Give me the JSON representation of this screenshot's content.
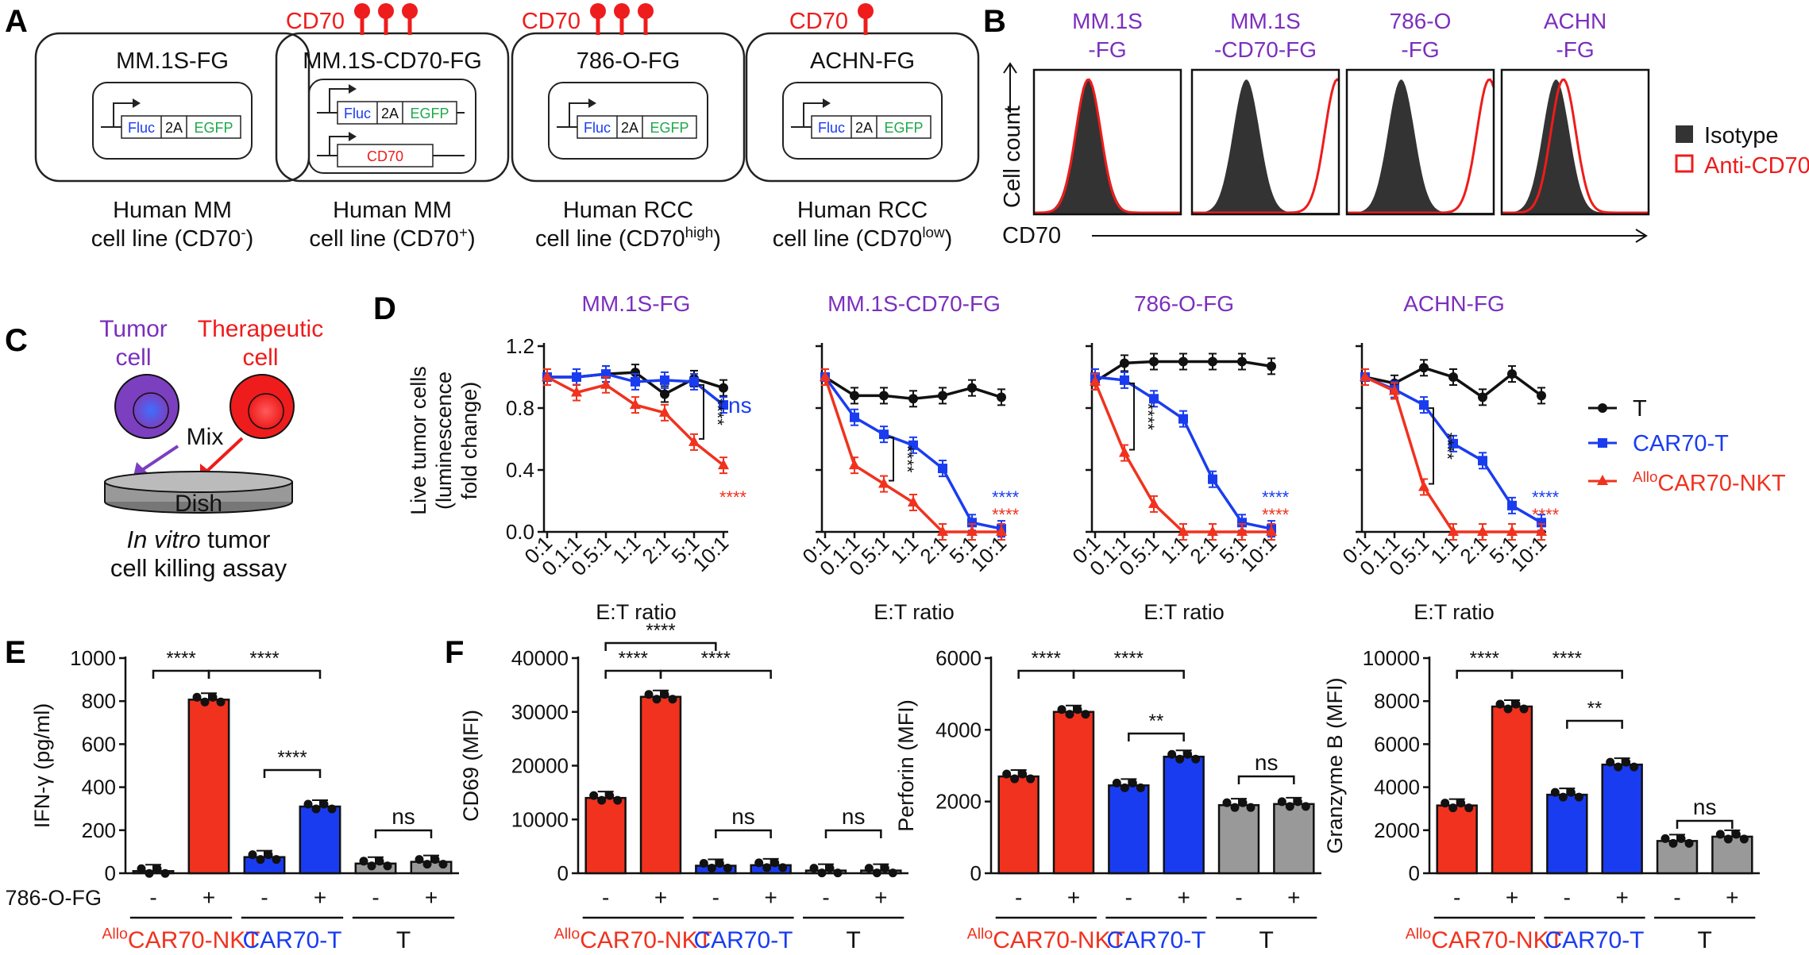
{
  "colors": {
    "nkt": "#f0321e",
    "cart": "#1a3cf0",
    "t": "#999999",
    "purple": "#7b2fbe",
    "red": "#ee1c1c",
    "blue": "#1a3cf0",
    "green": "#1fa84b",
    "black": "#111111"
  },
  "panelA": {
    "label": "A",
    "cd70_label": "CD70",
    "constructs": [
      {
        "name": "MM.1S-FG",
        "caption1": "Human MM",
        "caption2": "cell line (CD70",
        "sup": "-",
        "caption2_end": ")",
        "receptors": 0,
        "extra": false
      },
      {
        "name": "MM.1S-CD70-FG",
        "caption1": "Human MM",
        "caption2": "cell line (CD70",
        "sup": "+",
        "caption2_end": ")",
        "receptors": 3,
        "extra": true
      },
      {
        "name": "786-O-FG",
        "caption1": "Human RCC",
        "caption2": "cell line (CD70",
        "sup": "high",
        "caption2_end": ")",
        "receptors": 3,
        "extra": false
      },
      {
        "name": "ACHN-FG",
        "caption1": "Human RCC",
        "caption2": "cell line (CD70",
        "sup": "low",
        "caption2_end": ")",
        "receptors": 1,
        "extra": false
      }
    ],
    "gene_fluc": "Fluc",
    "gene_2a": "2A",
    "gene_egfp": "EGFP",
    "gene_cd70": "CD70"
  },
  "panelB": {
    "label": "B",
    "titles": [
      [
        "MM.1S",
        "-FG"
      ],
      [
        "MM.1S",
        "-CD70-FG"
      ],
      [
        "786-O",
        "-FG"
      ],
      [
        "ACHN",
        "-FG"
      ]
    ],
    "shift": [
      0,
      0.62,
      0.6,
      0.05
    ],
    "ylabel": "Cell count",
    "xlabel": "CD70",
    "legend": [
      {
        "label": "Isotype"
      },
      {
        "label": "Anti-CD70"
      }
    ]
  },
  "panelC": {
    "label": "C",
    "tumor": [
      "Tumor",
      "cell"
    ],
    "therapeutic": [
      "Therapeutic",
      "cell"
    ],
    "mix": "Mix",
    "dish": "Dish",
    "caption1_italic": "In vitro",
    "caption1_rest": " tumor",
    "caption2": "cell killing assay"
  },
  "panelD": {
    "label": "D",
    "ylabel": [
      "Live tumor cells",
      "(luminescence",
      "fold change)"
    ],
    "xlabel": "E:T ratio",
    "ratios": [
      "0:1",
      "0.1:1",
      "0.5:1",
      "1:1",
      "2:1",
      "5:1",
      "10:1"
    ],
    "yticks": [
      "0.0",
      "0.4",
      "0.8",
      "1.2"
    ],
    "legend": [
      {
        "label": "T"
      },
      {
        "label": "CAR70-T"
      },
      {
        "sup": "Allo",
        "label": "CAR70-NKT"
      }
    ],
    "panels": [
      {
        "title": "MM.1S-FG",
        "T": [
          1.0,
          1.0,
          1.02,
          1.03,
          0.89,
          0.99,
          0.93
        ],
        "CAR": [
          1.0,
          1.0,
          1.02,
          0.97,
          0.98,
          0.97,
          0.82
        ],
        "NKT": [
          1.0,
          0.9,
          0.95,
          0.82,
          0.77,
          0.58,
          0.43
        ],
        "sig_bracket": "****",
        "car_label": "ns",
        "nkt_label": "****"
      },
      {
        "title": "MM.1S-CD70-FG",
        "T": [
          1.0,
          0.88,
          0.88,
          0.86,
          0.88,
          0.93,
          0.87
        ],
        "CAR": [
          1.0,
          0.74,
          0.63,
          0.56,
          0.41,
          0.06,
          0.02
        ],
        "NKT": [
          1.0,
          0.43,
          0.31,
          0.19,
          0.0,
          0.0,
          0.0
        ],
        "sig_bracket": "****",
        "car_label": "****",
        "nkt_label": "****"
      },
      {
        "title": "786-O-FG",
        "T": [
          0.97,
          1.09,
          1.1,
          1.1,
          1.1,
          1.1,
          1.07
        ],
        "CAR": [
          1.0,
          0.98,
          0.86,
          0.73,
          0.34,
          0.06,
          0.02
        ],
        "NKT": [
          0.97,
          0.51,
          0.18,
          0.0,
          0.0,
          0.0,
          0.0
        ],
        "sig_bracket": "****",
        "car_label": "****",
        "nkt_label": "****"
      },
      {
        "title": "ACHN-FG",
        "T": [
          1.0,
          0.96,
          1.06,
          1.0,
          0.87,
          1.02,
          0.88
        ],
        "CAR": [
          1.0,
          0.92,
          0.82,
          0.57,
          0.46,
          0.17,
          0.06
        ],
        "NKT": [
          1.0,
          0.91,
          0.29,
          0.0,
          0.0,
          0.0,
          0.0
        ],
        "sig_bracket": "****",
        "car_label": "****",
        "nkt_label": "****"
      }
    ]
  },
  "panelE": {
    "label": "E",
    "ylabel": "IFN-γ (pg/ml)",
    "yticks": [
      "0",
      "200",
      "400",
      "600",
      "800",
      "1000"
    ],
    "row_label": "786-O-FG",
    "values": [
      10,
      807,
      75,
      310,
      45,
      53
    ],
    "sig": [
      "****",
      "****",
      "****",
      "ns"
    ]
  },
  "panelF": {
    "label": "F",
    "charts": [
      {
        "ylabel": "CD69 (MFI)",
        "yticks": [
          "0",
          "10000",
          "20000",
          "30000",
          "40000"
        ],
        "values": [
          14000,
          32800,
          1400,
          1500,
          500,
          500
        ],
        "sig": [
          "****",
          "****",
          "****",
          "ns",
          "ns"
        ]
      },
      {
        "ylabel": "Perforin (MFI)",
        "yticks": [
          "0",
          "2000",
          "4000",
          "6000"
        ],
        "values": [
          2700,
          4500,
          2450,
          3250,
          1900,
          1930
        ],
        "sig": [
          "****",
          "****",
          "**",
          "ns"
        ]
      },
      {
        "ylabel": "Granzyme B (MFI)",
        "yticks": [
          "0",
          "2000",
          "4000",
          "6000",
          "8000",
          "10000"
        ],
        "values": [
          3150,
          7750,
          3650,
          5050,
          1500,
          1700
        ],
        "sig": [
          "****",
          "****",
          "**",
          "ns"
        ]
      }
    ]
  },
  "groups": {
    "nkt_sup": "Allo",
    "nkt": "CAR70-NKT",
    "cart": "CAR70-T",
    "t": "T",
    "minus": "-",
    "plus": "+"
  },
  "chart_data": [
    {
      "type": "line",
      "title": "Panel D: MM.1S-FG",
      "xlabel": "E:T ratio",
      "ylabel": "Live tumor cells (luminescence fold change)",
      "categories": [
        "0:1",
        "0.1:1",
        "0.5:1",
        "1:1",
        "2:1",
        "5:1",
        "10:1"
      ],
      "ylim": [
        0,
        1.2
      ],
      "series": [
        {
          "name": "T",
          "values": [
            1.0,
            1.0,
            1.02,
            1.03,
            0.89,
            0.99,
            0.93
          ]
        },
        {
          "name": "CAR70-T",
          "values": [
            1.0,
            1.0,
            1.02,
            0.97,
            0.98,
            0.97,
            0.82
          ]
        },
        {
          "name": "AlloCAR70-NKT",
          "values": [
            1.0,
            0.9,
            0.95,
            0.82,
            0.77,
            0.58,
            0.43
          ]
        }
      ]
    },
    {
      "type": "line",
      "title": "Panel D: MM.1S-CD70-FG",
      "xlabel": "E:T ratio",
      "ylabel": "Live tumor cells (luminescence fold change)",
      "categories": [
        "0:1",
        "0.1:1",
        "0.5:1",
        "1:1",
        "2:1",
        "5:1",
        "10:1"
      ],
      "ylim": [
        0,
        1.2
      ],
      "series": [
        {
          "name": "T",
          "values": [
            1.0,
            0.88,
            0.88,
            0.86,
            0.88,
            0.93,
            0.87
          ]
        },
        {
          "name": "CAR70-T",
          "values": [
            1.0,
            0.74,
            0.63,
            0.56,
            0.41,
            0.06,
            0.02
          ]
        },
        {
          "name": "AlloCAR70-NKT",
          "values": [
            1.0,
            0.43,
            0.31,
            0.19,
            0.0,
            0.0,
            0.0
          ]
        }
      ]
    },
    {
      "type": "line",
      "title": "Panel D: 786-O-FG",
      "xlabel": "E:T ratio",
      "ylabel": "Live tumor cells (luminescence fold change)",
      "categories": [
        "0:1",
        "0.1:1",
        "0.5:1",
        "1:1",
        "2:1",
        "5:1",
        "10:1"
      ],
      "ylim": [
        0,
        1.2
      ],
      "series": [
        {
          "name": "T",
          "values": [
            0.97,
            1.09,
            1.1,
            1.1,
            1.1,
            1.1,
            1.07
          ]
        },
        {
          "name": "CAR70-T",
          "values": [
            1.0,
            0.98,
            0.86,
            0.73,
            0.34,
            0.06,
            0.02
          ]
        },
        {
          "name": "AlloCAR70-NKT",
          "values": [
            0.97,
            0.51,
            0.18,
            0.0,
            0.0,
            0.0,
            0.0
          ]
        }
      ]
    },
    {
      "type": "line",
      "title": "Panel D: ACHN-FG",
      "xlabel": "E:T ratio",
      "ylabel": "Live tumor cells (luminescence fold change)",
      "categories": [
        "0:1",
        "0.1:1",
        "0.5:1",
        "1:1",
        "2:1",
        "5:1",
        "10:1"
      ],
      "ylim": [
        0,
        1.2
      ],
      "series": [
        {
          "name": "T",
          "values": [
            1.0,
            0.96,
            1.06,
            1.0,
            0.87,
            1.02,
            0.88
          ]
        },
        {
          "name": "CAR70-T",
          "values": [
            1.0,
            0.92,
            0.82,
            0.57,
            0.46,
            0.17,
            0.06
          ]
        },
        {
          "name": "AlloCAR70-NKT",
          "values": [
            1.0,
            0.91,
            0.29,
            0.0,
            0.0,
            0.0,
            0.0
          ]
        }
      ]
    },
    {
      "type": "bar",
      "title": "Panel E: IFN-γ",
      "ylabel": "IFN-γ (pg/ml)",
      "categories": [
        "AlloCAR70-NKT -",
        "AlloCAR70-NKT +",
        "CAR70-T -",
        "CAR70-T +",
        "T -",
        "T +"
      ],
      "values": [
        10,
        807,
        75,
        310,
        45,
        53
      ],
      "ylim": [
        0,
        1000
      ]
    },
    {
      "type": "bar",
      "title": "Panel F: CD69",
      "ylabel": "CD69 (MFI)",
      "categories": [
        "AlloCAR70-NKT -",
        "AlloCAR70-NKT +",
        "CAR70-T -",
        "CAR70-T +",
        "T -",
        "T +"
      ],
      "values": [
        14000,
        32800,
        1400,
        1500,
        500,
        500
      ],
      "ylim": [
        0,
        40000
      ]
    },
    {
      "type": "bar",
      "title": "Panel F: Perforin",
      "ylabel": "Perforin (MFI)",
      "categories": [
        "AlloCAR70-NKT -",
        "AlloCAR70-NKT +",
        "CAR70-T -",
        "CAR70-T +",
        "T -",
        "T +"
      ],
      "values": [
        2700,
        4500,
        2450,
        3250,
        1900,
        1930
      ],
      "ylim": [
        0,
        6000
      ]
    },
    {
      "type": "bar",
      "title": "Panel F: Granzyme B",
      "ylabel": "Granzyme B (MFI)",
      "categories": [
        "AlloCAR70-NKT -",
        "AlloCAR70-NKT +",
        "CAR70-T -",
        "CAR70-T +",
        "T -",
        "T +"
      ],
      "values": [
        3150,
        7750,
        3650,
        5050,
        1500,
        1700
      ],
      "ylim": [
        0,
        10000
      ]
    }
  ]
}
